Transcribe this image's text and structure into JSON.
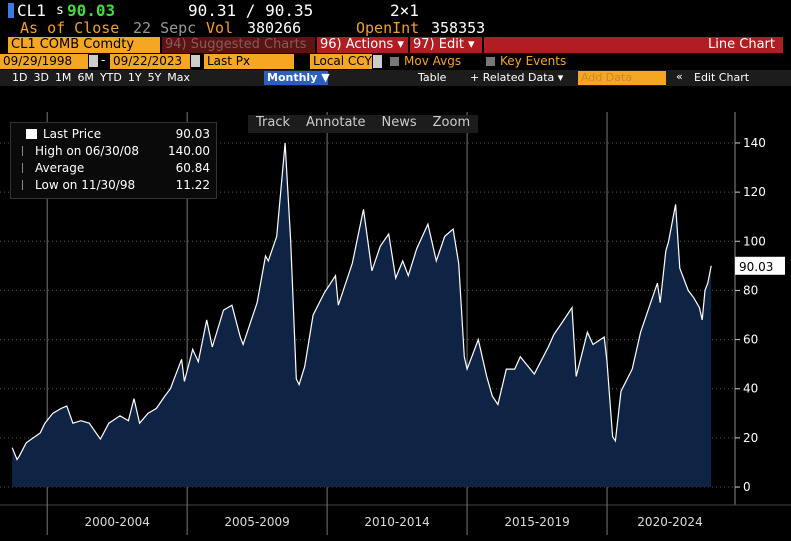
{
  "header": {
    "ticker": "CL1",
    "price_prefix": "s",
    "price": "90.03",
    "bid_ask": "90.31 / 90.35",
    "size": "2×1",
    "as_of": "As of Close",
    "date": "22 Sepc",
    "vol_label": "Vol",
    "vol": "380266",
    "oi_label": "OpenInt",
    "oi": "358353"
  },
  "toolbar": {
    "security": "CL1 COMB Comdty",
    "suggested": "94) Suggested Charts",
    "actions": "96) Actions ▾",
    "edit": "97) Edit ▾",
    "chart_type": "Line Chart"
  },
  "settings": {
    "start": "09/29/1998",
    "end": "09/22/2023",
    "field": "Last Px",
    "currency": "Local CCY",
    "mov_avgs": "Mov Avgs",
    "key_events": "Key Events"
  },
  "ranges": [
    "1D",
    "3D",
    "1M",
    "6M",
    "YTD",
    "1Y",
    "5Y",
    "Max"
  ],
  "frequency": "Monthly ▼",
  "table": "Table",
  "related": "+ Related Data ▾",
  "add_data": "Add Data",
  "edit_chart": "Edit Chart",
  "chart_tools": [
    "Track",
    "Annotate",
    "News",
    "Zoom"
  ],
  "chart_data": {
    "type": "area",
    "x": [
      1998.75,
      1998.92,
      1999.0,
      1999.25,
      1999.5,
      1999.75,
      1999.92,
      2000.2,
      2000.5,
      2000.7,
      2000.92,
      2001.2,
      2001.5,
      2001.9,
      2002.2,
      2002.6,
      2002.9,
      2003.1,
      2003.3,
      2003.6,
      2003.9,
      2004.2,
      2004.4,
      2004.8,
      2004.9,
      2005.2,
      2005.4,
      2005.7,
      2005.9,
      2006.3,
      2006.6,
      2006.9,
      2007.0,
      2007.5,
      2007.8,
      2007.9,
      2008.2,
      2008.5,
      2008.7,
      2008.9,
      2009.0,
      2009.2,
      2009.5,
      2009.9,
      2010.3,
      2010.4,
      2010.9,
      2011.3,
      2011.6,
      2011.9,
      2012.2,
      2012.45,
      2012.7,
      2012.9,
      2013.2,
      2013.6,
      2013.9,
      2014.2,
      2014.5,
      2014.7,
      2014.9,
      2015.0,
      2015.4,
      2015.7,
      2015.9,
      2016.1,
      2016.4,
      2016.7,
      2016.9,
      2017.4,
      2017.9,
      2018.1,
      2018.4,
      2018.75,
      2018.9,
      2019.3,
      2019.5,
      2019.9,
      2020.0,
      2020.2,
      2020.3,
      2020.5,
      2020.9,
      2021.2,
      2021.5,
      2021.8,
      2021.9,
      2022.1,
      2022.2,
      2022.45,
      2022.6,
      2022.9,
      2023.1,
      2023.3,
      2023.4,
      2023.5,
      2023.6,
      2023.72
    ],
    "series": [
      {
        "name": "Last Price",
        "color": "#ffffff",
        "fill": "#0f2444",
        "values": [
          16,
          11.22,
          12.5,
          18,
          20,
          22,
          26,
          30,
          32,
          33,
          26,
          27,
          26,
          19.5,
          26,
          29,
          27,
          36,
          26,
          30,
          32,
          37,
          40,
          52,
          43,
          56,
          51,
          68,
          57,
          72,
          74,
          61,
          58,
          75,
          94,
          92,
          102,
          140,
          100,
          44,
          41.7,
          49,
          70,
          79,
          86,
          74,
          91,
          113,
          88,
          98,
          103,
          85,
          92,
          86,
          97,
          107,
          92,
          102,
          105,
          91,
          53,
          48,
          60,
          45,
          37,
          33.6,
          48,
          48,
          53,
          46,
          57,
          62,
          67,
          73,
          45,
          63,
          58,
          61,
          51,
          20.5,
          18.8,
          39,
          48,
          63,
          73,
          83,
          75,
          96,
          100,
          115,
          89,
          80,
          77,
          73,
          68,
          80,
          83,
          90.03
        ]
      }
    ],
    "xlim": [
      1998.6,
      2024.5
    ],
    "xticks": [
      2000,
      2005,
      2010,
      2015,
      2020,
      2025
    ],
    "period_labels": [
      "2000-2004",
      "2005-2009",
      "2010-2014",
      "2015-2019",
      "2020-2024"
    ],
    "ylim": [
      -7.3,
      152.6
    ],
    "yticks": [
      0,
      20,
      40,
      60,
      80,
      100,
      120,
      140
    ],
    "grid": true,
    "last_label": "90.03",
    "legend_stats": [
      {
        "label": "Last Price",
        "value": "90.03"
      },
      {
        "label": "High on 06/30/08",
        "value": "140.00"
      },
      {
        "label": "Average",
        "value": "60.84"
      },
      {
        "label": "Low on 11/30/98",
        "value": "11.22"
      }
    ]
  }
}
